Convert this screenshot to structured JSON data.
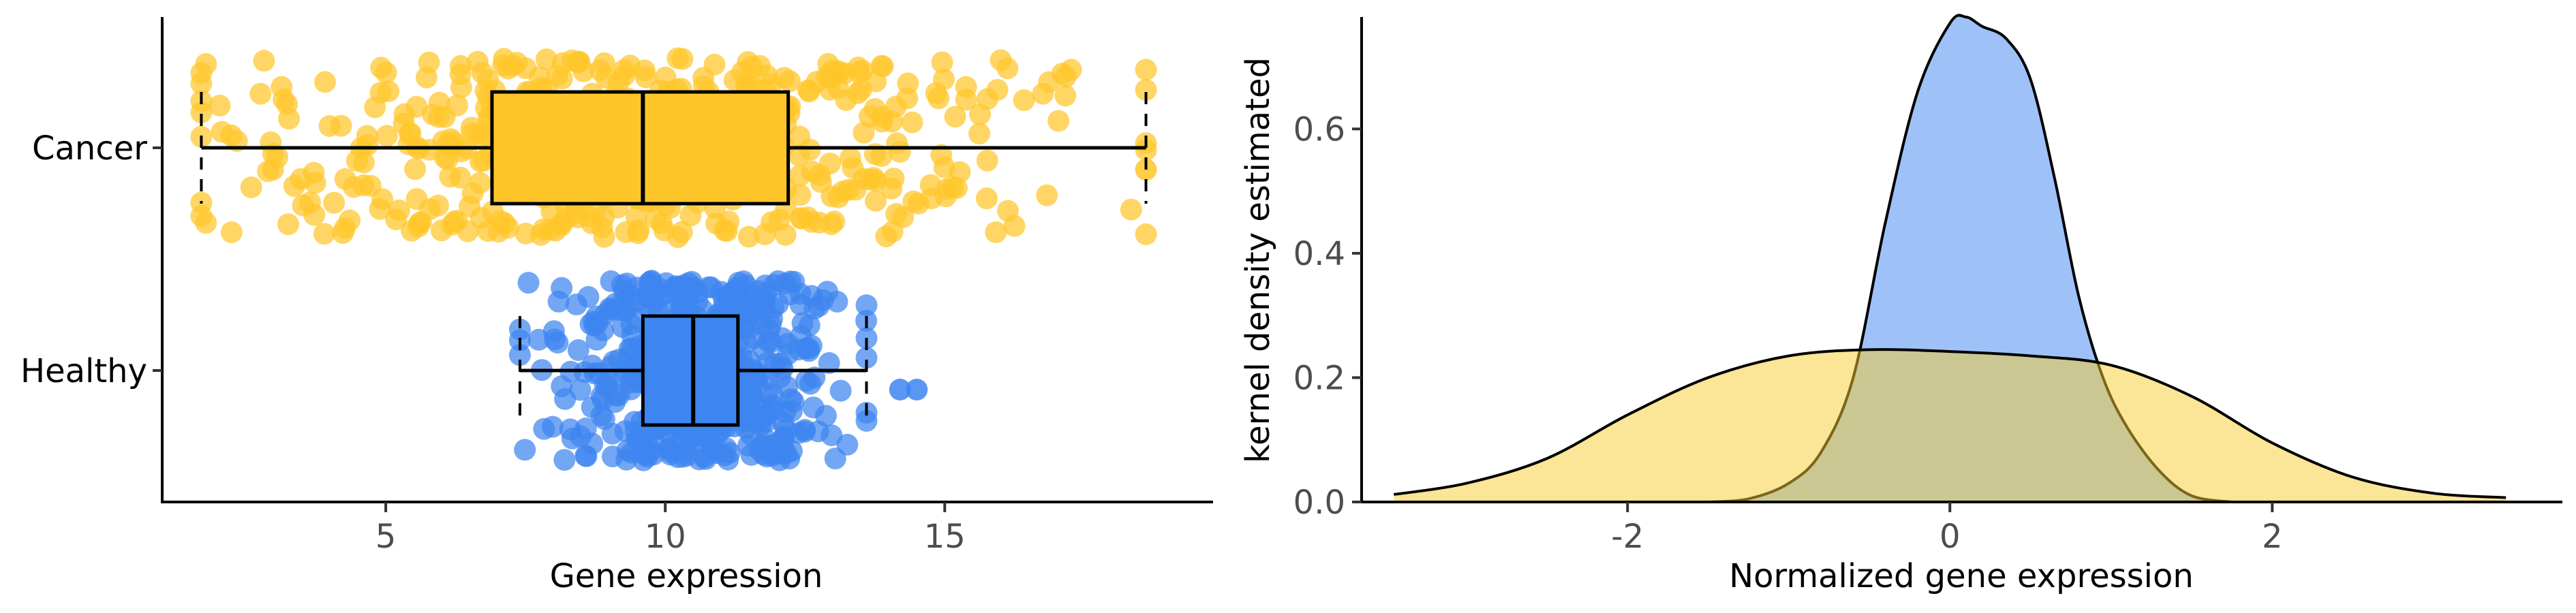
{
  "chart_data": [
    {
      "type": "boxplot",
      "orientation": "horizontal",
      "xlabel": "Gene expression",
      "ylabel": "",
      "xlim": [
        1.0,
        19.8
      ],
      "x_ticks": [
        5,
        10,
        15
      ],
      "grid": false,
      "legend": "none",
      "categories": [
        "Cancer",
        "Healthy"
      ],
      "series": [
        {
          "category": "Cancer",
          "color": "#FFC629",
          "point_color": "#FFC629",
          "min": 1.7,
          "q1": 6.9,
          "median": 9.6,
          "q3": 12.2,
          "max": 18.6,
          "outliers": [
            18.6
          ],
          "point_count": 500,
          "point_mean": 9.6,
          "point_sd": 3.7
        },
        {
          "category": "Healthy",
          "color": "#3D85F0",
          "point_color": "#3D85F0",
          "min": 7.4,
          "q1": 9.6,
          "median": 10.5,
          "q3": 11.3,
          "max": 13.6,
          "outliers": [
            14.2,
            14.5
          ],
          "point_count": 500,
          "point_mean": 10.5,
          "point_sd": 1.3
        }
      ]
    },
    {
      "type": "area",
      "subtype": "kernel-density",
      "xlabel": "Normalized gene expression",
      "ylabel": "kernel density estimated",
      "xlim": [
        -3.65,
        3.8
      ],
      "ylim": [
        0,
        0.78
      ],
      "x_ticks": [
        -2,
        0,
        2
      ],
      "y_ticks": [
        0.0,
        0.2,
        0.4,
        0.6
      ],
      "x_tick_labels": [
        "-2",
        "0",
        "2"
      ],
      "y_tick_labels": [
        "0.0",
        "0.2",
        "0.4",
        "0.6"
      ],
      "grid": false,
      "legend": "none",
      "series": [
        {
          "color": "#F8CB2E",
          "fill_opacity": 0.5,
          "x": [
            -3.45,
            -3.0,
            -2.5,
            -2.0,
            -1.5,
            -1.0,
            -0.5,
            0.0,
            0.5,
            1.0,
            1.5,
            2.0,
            2.5,
            3.0,
            3.45
          ],
          "y": [
            0.012,
            0.03,
            0.07,
            0.14,
            0.2,
            0.235,
            0.245,
            0.242,
            0.235,
            0.22,
            0.17,
            0.095,
            0.04,
            0.014,
            0.007
          ]
        },
        {
          "color": "#3D85F0",
          "fill_opacity": 0.5,
          "x": [
            -1.5,
            -1.25,
            -1.0,
            -0.8,
            -0.6,
            -0.4,
            -0.2,
            0.0,
            0.1,
            0.2,
            0.35,
            0.5,
            0.65,
            0.8,
            0.95,
            1.1,
            1.3,
            1.5,
            1.75
          ],
          "y": [
            0.0,
            0.005,
            0.03,
            0.08,
            0.2,
            0.45,
            0.66,
            0.77,
            0.78,
            0.765,
            0.745,
            0.68,
            0.52,
            0.33,
            0.2,
            0.12,
            0.05,
            0.01,
            0.0
          ]
        }
      ]
    }
  ]
}
